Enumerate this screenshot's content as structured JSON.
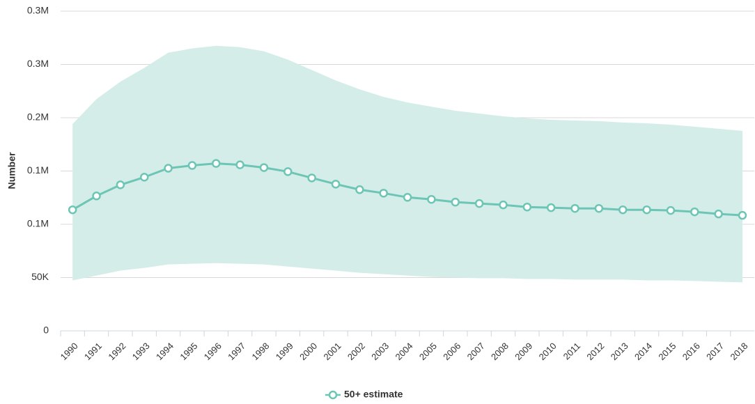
{
  "chart_data": {
    "type": "line",
    "y_label": "Number",
    "categories": [
      "1990",
      "1991",
      "1992",
      "1993",
      "1994",
      "1995",
      "1996",
      "1997",
      "1998",
      "1999",
      "2000",
      "2001",
      "2002",
      "2003",
      "2004",
      "2005",
      "2006",
      "2007",
      "2008",
      "2009",
      "2010",
      "2011",
      "2012",
      "2013",
      "2014",
      "2015",
      "2016",
      "2017",
      "2018"
    ],
    "series": [
      {
        "name": "50+ estimate",
        "color": "#6cc5b5",
        "values": [
          113600,
          126600,
          137000,
          144200,
          152600,
          155200,
          157100,
          155800,
          153200,
          149400,
          143500,
          137700,
          132500,
          129200,
          125300,
          123400,
          120800,
          119500,
          118200,
          116200,
          115600,
          114900,
          114900,
          113600,
          113600,
          113000,
          111700,
          109700,
          108400
        ]
      }
    ],
    "band": {
      "color": "#d4ede8",
      "upper": [
        194000,
        217500,
        233800,
        246800,
        261000,
        265000,
        267500,
        266200,
        262300,
        254500,
        244800,
        235000,
        226600,
        219500,
        214300,
        210400,
        206500,
        203900,
        201300,
        199400,
        198000,
        197400,
        196800,
        195500,
        194800,
        193500,
        191600,
        189600,
        187700
      ],
      "lower": [
        47400,
        51900,
        56500,
        59100,
        62300,
        63000,
        63600,
        63000,
        62300,
        60400,
        58400,
        56500,
        54500,
        53200,
        51900,
        50600,
        50000,
        49400,
        49400,
        48700,
        48700,
        48100,
        48100,
        48100,
        47400,
        47400,
        46800,
        46100,
        45500
      ]
    },
    "ylim": [
      0,
      300000
    ],
    "yticks": [
      0,
      {
        "value": 50000,
        "label": "50K"
      },
      {
        "value": 100000,
        "label": "0.1M"
      },
      {
        "value": 150000,
        "label": "0.1M"
      },
      {
        "value": 200000,
        "label": "0.2M"
      },
      {
        "value": 250000,
        "label": "0.3M"
      },
      {
        "value": 300000,
        "label": "0.3M"
      }
    ],
    "grid": true,
    "legend": "bottom"
  }
}
